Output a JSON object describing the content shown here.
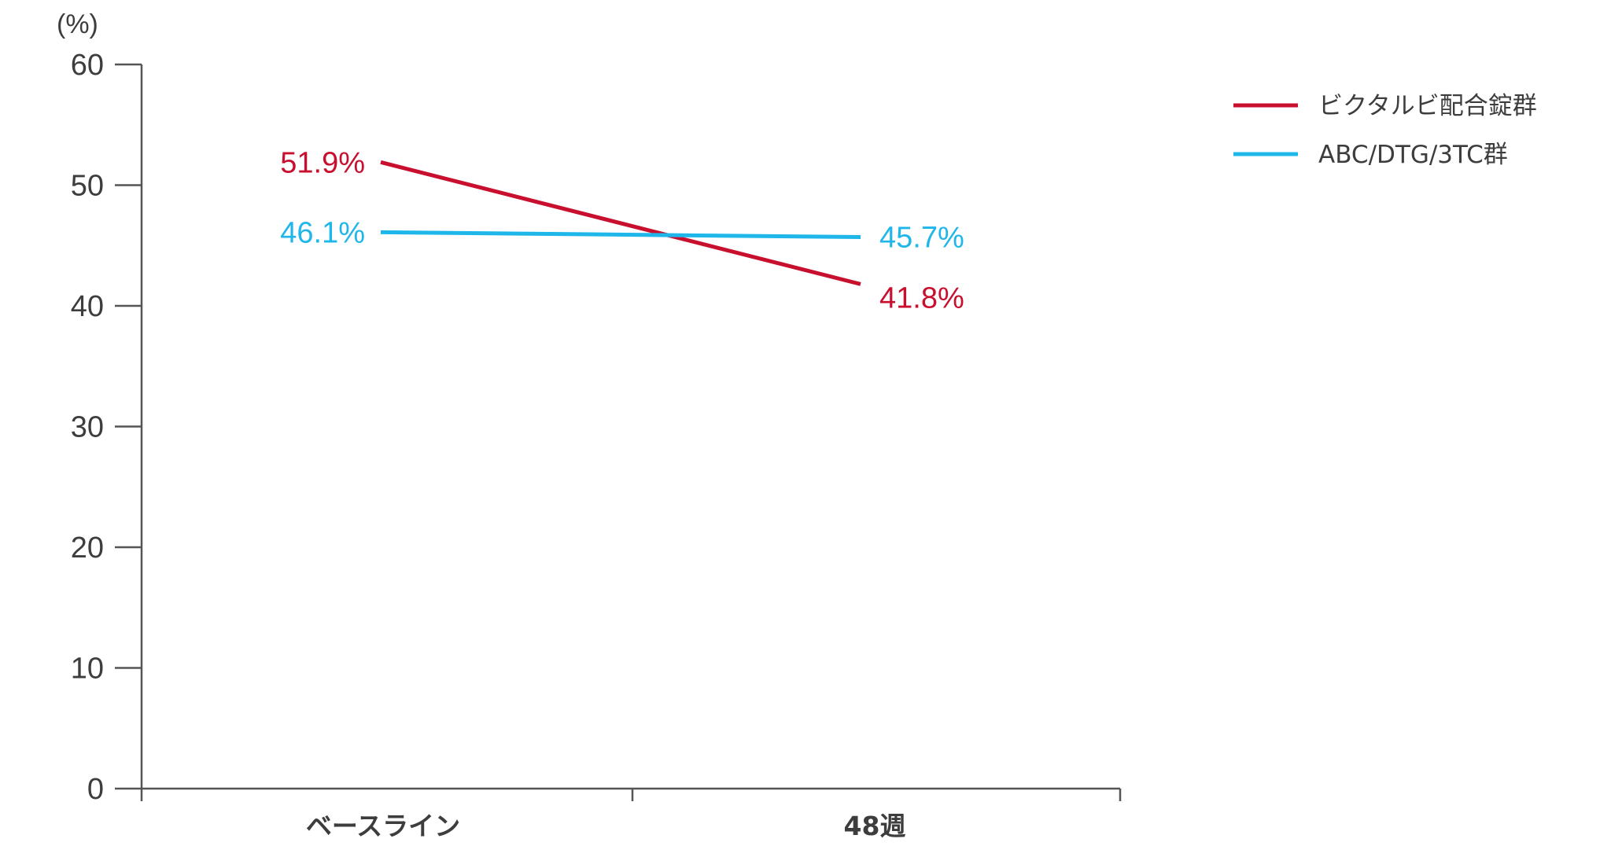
{
  "chart_data": {
    "type": "line",
    "y_unit": "(%)",
    "ylim": [
      0,
      60
    ],
    "yticks": [
      0,
      10,
      20,
      30,
      40,
      50,
      60
    ],
    "categories": [
      "ベースライン",
      "48週"
    ],
    "grid": false,
    "legend_position": "top-right",
    "series": [
      {
        "name": "ビクタルビ配合錠群",
        "color": "#c8102e",
        "values": [
          51.9,
          41.8
        ],
        "labels": [
          "51.9%",
          "41.8%"
        ]
      },
      {
        "name": "ABC/DTG/3TC群",
        "color": "#1fb6ea",
        "values": [
          46.1,
          45.7
        ],
        "labels": [
          "46.1%",
          "45.7%"
        ]
      }
    ]
  }
}
